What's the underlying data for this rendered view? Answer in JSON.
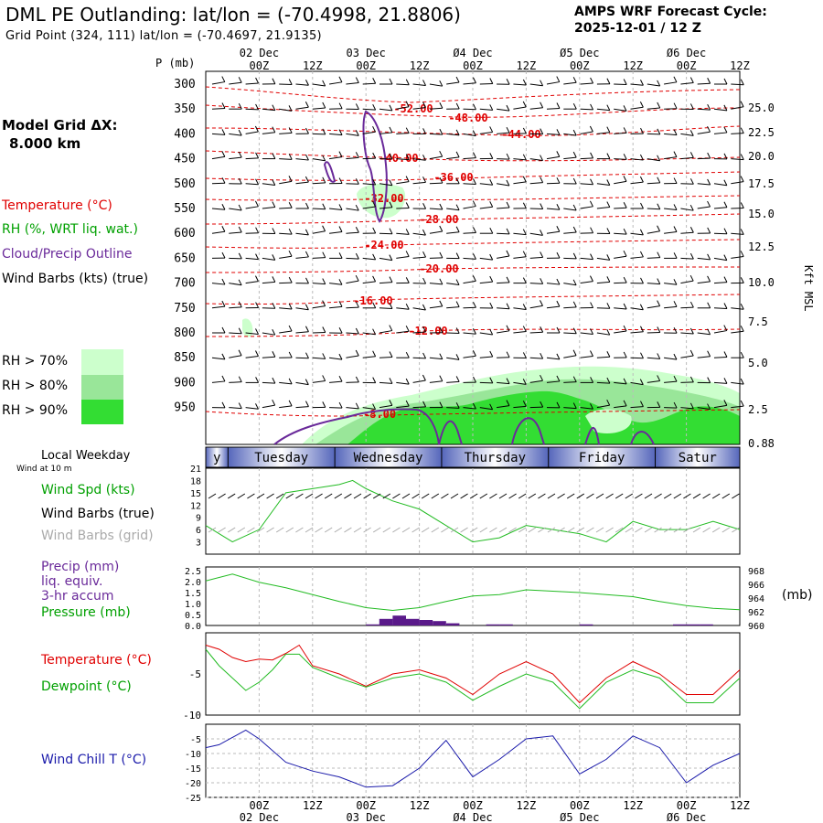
{
  "header": {
    "title": "DML PE Outlanding:  lat/lon = (-70.4998, 21.8806)",
    "grid_point": "Grid Point (324, 111) lat/lon = (-70.4697, 21.9135)",
    "forecast_line1": "AMPS WRF Forecast Cycle:",
    "forecast_line2": "2025-12-01 / 12  Z"
  },
  "model_grid": {
    "line1": "Model Grid ΔX:",
    "line2": "8.000 km"
  },
  "legend": {
    "temperature": "Temperature (°C)",
    "rh": "RH (%, WRT liq. wat.)",
    "cloud": "Cloud/Precip Outline",
    "wind_barbs": "Wind Barbs (kts) (true)",
    "rh70": "RH > 70%",
    "rh80": "RH > 80%",
    "rh90": "RH > 90%",
    "colors": {
      "rh70": "#ccffcc",
      "rh80": "#99e699",
      "rh90": "#33dd33"
    }
  },
  "time_axis": {
    "date_labels": [
      "02 Dec",
      "03 Dec",
      "Ø4 Dec",
      "Ø5 Dec",
      "Ø6 Dec"
    ],
    "hour_labels": [
      "00Z",
      "12Z",
      "00Z",
      "12Z",
      "00Z",
      "12Z",
      "00Z",
      "12Z",
      "00Z",
      "12Z"
    ],
    "hour_values": [
      12,
      24,
      36,
      48,
      60,
      72,
      84,
      96,
      108,
      120
    ],
    "date_values": [
      12,
      36,
      60,
      84,
      108
    ],
    "total_hours": 120
  },
  "weekdays": {
    "title": "Local Weekday",
    "wind_note": "Wind at 10 m",
    "days": [
      "y",
      "Tuesday",
      "Wednesday",
      "Thursday",
      "Friday",
      "Satur"
    ]
  },
  "wind_panel": {
    "spd_label": "Wind Spd (kts)",
    "barbs_true": "Wind Barbs (true)",
    "barbs_grid": "Wind Barbs (grid)",
    "yticks": [
      "21",
      "18",
      "15",
      "12",
      "9",
      "6",
      "3"
    ]
  },
  "precip_panel": {
    "label1": "Precip (mm)",
    "label2": "liq. equiv.",
    "label3": "3-hr accum",
    "label4": "Pressure (mb)",
    "left_ticks": [
      "2.5",
      "2.0",
      "1.5",
      "1.0",
      "0.5",
      "0.0"
    ],
    "right_ticks": [
      "968",
      "966",
      "964",
      "962",
      "960"
    ],
    "unit": "(mb)"
  },
  "temp_panel": {
    "label1": "Temperature (°C)",
    "label2": "Dewpoint (°C)",
    "yticks": [
      "-5",
      "-10"
    ]
  },
  "chill_panel": {
    "label": "Wind Chill T (°C)",
    "yticks": [
      "-5",
      "-10",
      "-15",
      "-20",
      "-25"
    ]
  },
  "main_panel": {
    "p_label": "P (mb)",
    "pressure_levels": [
      "300",
      "350",
      "400",
      "450",
      "500",
      "550",
      "600",
      "650",
      "700",
      "750",
      "800",
      "850",
      "900",
      "950"
    ],
    "kft_labels": [
      "25.0",
      "22.5",
      "20.0",
      "17.5",
      "15.0",
      "12.5",
      "10.0",
      "7.5",
      "5.0",
      "2.5",
      "0.88"
    ],
    "kft_title": "Kft MSL"
  },
  "chart_data": [
    {
      "type": "line",
      "title": "Temperature contours (°C)",
      "labels": [
        "-52.00",
        "-48.00",
        "-44.00",
        "-40.00",
        "-36.00",
        "-32.00",
        "-28.00",
        "-24.00",
        "-20.00",
        "-16.00",
        "-12.00",
        "-8.00"
      ]
    },
    {
      "type": "line",
      "title": "10 m Wind Speed (kts)",
      "x": [
        0,
        6,
        12,
        18,
        24,
        30,
        33,
        36,
        42,
        48,
        54,
        60,
        66,
        72,
        78,
        84,
        90,
        96,
        102,
        108,
        114,
        120
      ],
      "values": [
        7,
        3,
        6,
        15,
        16,
        17,
        18,
        16,
        13,
        11,
        7,
        3,
        4,
        7,
        6,
        5,
        3,
        8,
        6,
        6,
        8,
        6
      ],
      "ylim": [
        0,
        21
      ]
    },
    {
      "type": "area",
      "title": "Precip (mm) 3-hr accum",
      "x": [
        36,
        39,
        42,
        45,
        48,
        51,
        54,
        63,
        66,
        84,
        105,
        108,
        111
      ],
      "values": [
        0.05,
        0.3,
        0.45,
        0.3,
        0.25,
        0.2,
        0.1,
        0.05,
        0.05,
        0.05,
        0.05,
        0.05,
        0.05
      ],
      "ylim": [
        0,
        2.5
      ]
    },
    {
      "type": "line",
      "title": "Pressure (mb)",
      "x": [
        0,
        6,
        12,
        18,
        24,
        30,
        36,
        42,
        48,
        54,
        60,
        66,
        72,
        78,
        84,
        90,
        96,
        102,
        108,
        114,
        120
      ],
      "values": [
        966.5,
        967.5,
        966.3,
        965.5,
        964.5,
        963.5,
        962.6,
        962.2,
        962.6,
        963.5,
        964.3,
        964.5,
        965.2,
        965.0,
        964.8,
        964.5,
        964.2,
        963.5,
        962.9,
        962.5,
        962.3
      ],
      "ylim": [
        960,
        968
      ]
    },
    {
      "type": "line",
      "title": "Temperature / Dewpoint (°C)",
      "x": [
        0,
        3,
        6,
        9,
        12,
        15,
        18,
        21,
        24,
        30,
        36,
        42,
        48,
        54,
        60,
        66,
        72,
        78,
        84,
        90,
        96,
        102,
        108,
        114,
        120
      ],
      "series": [
        {
          "name": "Temperature",
          "values": [
            -1.5,
            -2,
            -3,
            -3.5,
            -3.2,
            -3.3,
            -2.5,
            -1.5,
            -4,
            -5,
            -6.5,
            -5,
            -4.5,
            -5.5,
            -7.5,
            -5,
            -3.5,
            -5,
            -8.5,
            -5.5,
            -3.5,
            -5,
            -7.5,
            -7.5,
            -4.5
          ]
        },
        {
          "name": "Dewpoint",
          "values": [
            -2,
            -4,
            -5.5,
            -7,
            -6,
            -4.5,
            -2.6,
            -2.6,
            -4.2,
            -5.5,
            -6.6,
            -5.5,
            -5,
            -6,
            -8.2,
            -6.5,
            -5,
            -6,
            -9.2,
            -6,
            -4.5,
            -5.5,
            -8.5,
            -8.5,
            -5.5
          ]
        }
      ],
      "ylim": [
        -10,
        0
      ]
    },
    {
      "type": "line",
      "title": "Wind Chill T (°C)",
      "x": [
        0,
        3,
        9,
        12,
        18,
        24,
        30,
        36,
        42,
        48,
        54,
        60,
        66,
        72,
        78,
        84,
        90,
        96,
        102,
        108,
        114,
        120
      ],
      "values": [
        -8,
        -7,
        -2,
        -5,
        -13,
        -16,
        -18,
        -21.5,
        -21,
        -15,
        -5.5,
        -18,
        -12,
        -5,
        -4,
        -17,
        -12,
        -4,
        -8,
        -20,
        -14,
        -10
      ],
      "ylim": [
        -25,
        0
      ]
    }
  ]
}
